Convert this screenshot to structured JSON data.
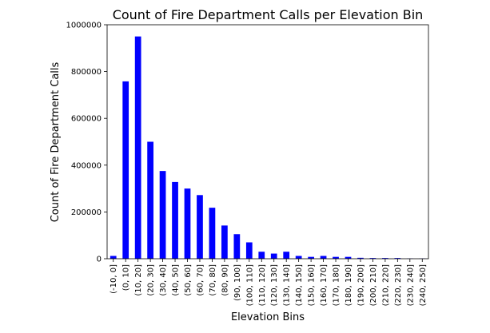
{
  "chart_data": {
    "type": "bar",
    "title": "Count of Fire Department Calls per Elevation Bin",
    "xlabel": "Elevation Bins",
    "ylabel": "Count of Fire Department Calls",
    "ylim": [
      0,
      1000000
    ],
    "yticks": [
      "0",
      "200000",
      "400000",
      "600000",
      "800000",
      "1000000"
    ],
    "ytick_values": [
      0,
      200000,
      400000,
      600000,
      800000,
      1000000
    ],
    "bar_color": "#0000ff",
    "grid": false,
    "categories": [
      "(-10, 0]",
      "(0, 10]",
      "(10, 20]",
      "(20, 30]",
      "(30, 40]",
      "(40, 50]",
      "(50, 60]",
      "(60, 70]",
      "(70, 80]",
      "(80, 90]",
      "(90, 100]",
      "(100, 110]",
      "(110, 120]",
      "(120, 130]",
      "(130, 140]",
      "(140, 150]",
      "(150, 160]",
      "(160, 170]",
      "(170, 180]",
      "(180, 190]",
      "(190, 200]",
      "(200, 210]",
      "(210, 220]",
      "(220, 230]",
      "(230, 240]",
      "(240, 250]"
    ],
    "values": [
      12000,
      758000,
      950000,
      500000,
      375000,
      328000,
      300000,
      272000,
      218000,
      142000,
      105000,
      70000,
      30000,
      22000,
      30000,
      12000,
      8000,
      12000,
      8000,
      8000,
      4000,
      3000,
      3000,
      3000,
      1000,
      1000
    ]
  }
}
